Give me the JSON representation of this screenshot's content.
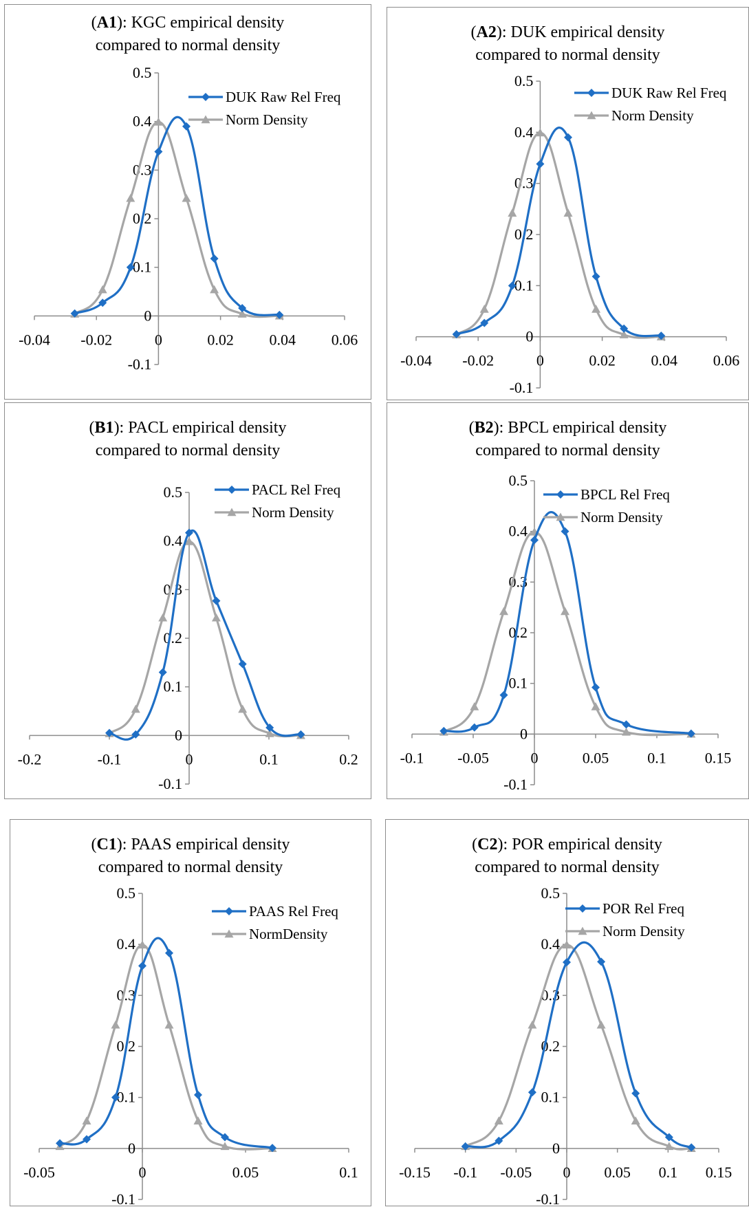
{
  "chart_data": [
    {
      "id": "A1",
      "type": "line",
      "title_label": "A1",
      "title_line1": "KGC empirical density",
      "title_line2": "compared to normal density",
      "xlim": [
        -0.04,
        0.06
      ],
      "ylim": [
        -0.1,
        0.5
      ],
      "xticks": [
        "-0.04",
        "-0.02",
        "0",
        "0.02",
        "0.04",
        "0.06"
      ],
      "xtick_values": [
        -0.04,
        -0.02,
        0,
        0.02,
        0.04,
        0.06
      ],
      "yticks": [
        "0.5",
        "0.4",
        "0.3",
        "0.2",
        "0.1",
        "0",
        "-0.1"
      ],
      "ytick_values": [
        0.5,
        0.4,
        0.3,
        0.2,
        0.1,
        0,
        -0.1
      ],
      "series": [
        {
          "name": "DUK Raw Rel Freq",
          "color": "#1f6fc5",
          "marker": "diamond",
          "x": [
            -0.027,
            -0.018,
            -0.009,
            0.0,
            0.009,
            0.018,
            0.027,
            0.039
          ],
          "y": [
            0.005,
            0.027,
            0.1,
            0.338,
            0.39,
            0.118,
            0.016,
            0.002
          ]
        },
        {
          "name": "Norm Density",
          "color": "#a6a6a6",
          "marker": "triangle",
          "x": [
            -0.027,
            -0.018,
            -0.009,
            0.0,
            0.009,
            0.018,
            0.027,
            0.039
          ],
          "y": [
            0.004,
            0.054,
            0.242,
            0.399,
            0.242,
            0.054,
            0.004,
            0.0
          ]
        }
      ]
    },
    {
      "id": "A2",
      "type": "line",
      "title_label": "A2",
      "title_line1": "DUK empirical density",
      "title_line2": "compared to normal density",
      "xlim": [
        -0.04,
        0.06
      ],
      "ylim": [
        -0.1,
        0.5
      ],
      "xticks": [
        "-0.04",
        "-0.02",
        "0",
        "0.02",
        "0.04",
        "0.06"
      ],
      "xtick_values": [
        -0.04,
        -0.02,
        0,
        0.02,
        0.04,
        0.06
      ],
      "yticks": [
        "0.5",
        "0.4",
        "0.3",
        "0.2",
        "0.1",
        "0",
        "-0.1"
      ],
      "ytick_values": [
        0.5,
        0.4,
        0.3,
        0.2,
        0.1,
        0,
        -0.1
      ],
      "series": [
        {
          "name": "DUK Raw Rel Freq",
          "color": "#1f6fc5",
          "marker": "diamond",
          "x": [
            -0.027,
            -0.018,
            -0.009,
            0.0,
            0.009,
            0.018,
            0.027,
            0.039
          ],
          "y": [
            0.005,
            0.027,
            0.1,
            0.338,
            0.39,
            0.118,
            0.016,
            0.002
          ]
        },
        {
          "name": "Norm Density",
          "color": "#a6a6a6",
          "marker": "triangle",
          "x": [
            -0.027,
            -0.018,
            -0.009,
            0.0,
            0.009,
            0.018,
            0.027,
            0.039
          ],
          "y": [
            0.004,
            0.054,
            0.242,
            0.399,
            0.242,
            0.054,
            0.004,
            0.0
          ]
        }
      ]
    },
    {
      "id": "B1",
      "type": "line",
      "title_label": "B1",
      "title_line1": "PACL empirical density",
      "title_line2": "compared to normal density",
      "xlim": [
        -0.2,
        0.2
      ],
      "ylim": [
        -0.1,
        0.5
      ],
      "xticks": [
        "-0.2",
        "-0.1",
        "0",
        "0.1",
        "0.2"
      ],
      "xtick_values": [
        -0.2,
        -0.1,
        0,
        0.1,
        0.2
      ],
      "yticks": [
        "0.5",
        "0.4",
        "0.3",
        "0.2",
        "0.1",
        "0",
        "-0.1"
      ],
      "ytick_values": [
        0.5,
        0.4,
        0.3,
        0.2,
        0.1,
        0,
        -0.1
      ],
      "series": [
        {
          "name": "PACL Rel Freq",
          "color": "#1f6fc5",
          "marker": "diamond",
          "x": [
            -0.1,
            -0.067,
            -0.033,
            0.0,
            0.034,
            0.067,
            0.101,
            0.14
          ],
          "y": [
            0.005,
            0.002,
            0.13,
            0.417,
            0.277,
            0.147,
            0.016,
            0.002
          ]
        },
        {
          "name": "Norm Density",
          "color": "#a6a6a6",
          "marker": "triangle",
          "x": [
            -0.1,
            -0.067,
            -0.033,
            0.0,
            0.034,
            0.067,
            0.101,
            0.14
          ],
          "y": [
            0.004,
            0.054,
            0.242,
            0.399,
            0.242,
            0.054,
            0.004,
            0.0
          ]
        }
      ]
    },
    {
      "id": "B2",
      "type": "line",
      "title_label": "B2",
      "title_line1": "BPCL empirical density",
      "title_line2": "compared to normal density",
      "xlim": [
        -0.1,
        0.15
      ],
      "ylim": [
        -0.1,
        0.5
      ],
      "xticks": [
        "-0.1",
        "-0.05",
        "0",
        "0.05",
        "0.1",
        "0.15"
      ],
      "xtick_values": [
        -0.1,
        -0.05,
        0,
        0.05,
        0.1,
        0.15
      ],
      "yticks": [
        "0.5",
        "0.4",
        "0.3",
        "0.2",
        "0.1",
        "0",
        "-0.1"
      ],
      "ytick_values": [
        0.5,
        0.4,
        0.3,
        0.2,
        0.1,
        0,
        -0.1
      ],
      "series": [
        {
          "name": "BPCL Rel Freq",
          "color": "#1f6fc5",
          "marker": "diamond",
          "x": [
            -0.074,
            -0.049,
            -0.025,
            0.0,
            0.025,
            0.05,
            0.075,
            0.128
          ],
          "y": [
            0.006,
            0.013,
            0.077,
            0.383,
            0.4,
            0.092,
            0.019,
            0.001
          ]
        },
        {
          "name": "Norm Density",
          "color": "#a6a6a6",
          "marker": "triangle",
          "x": [
            -0.074,
            -0.049,
            -0.025,
            0.0,
            0.025,
            0.05,
            0.075,
            0.128
          ],
          "y": [
            0.004,
            0.054,
            0.242,
            0.399,
            0.242,
            0.054,
            0.004,
            0.0
          ]
        }
      ]
    },
    {
      "id": "C1",
      "type": "line",
      "title_label": "C1",
      "title_line1": "PAAS empirical density",
      "title_line2": "compared to normal density",
      "xlim": [
        -0.05,
        0.1
      ],
      "ylim": [
        -0.1,
        0.5
      ],
      "xticks": [
        "-0.05",
        "0",
        "0.05",
        "0.1"
      ],
      "xtick_values": [
        -0.05,
        0,
        0.05,
        0.1
      ],
      "yticks": [
        "0.5",
        "0.4",
        "0.3",
        "0.2",
        "0.1",
        "0",
        "-0.1"
      ],
      "ytick_values": [
        0.5,
        0.4,
        0.3,
        0.2,
        0.1,
        0,
        -0.1
      ],
      "series": [
        {
          "name": "PAAS Rel Freq",
          "color": "#1f6fc5",
          "marker": "diamond",
          "x": [
            -0.04,
            -0.027,
            -0.013,
            0.0,
            0.013,
            0.027,
            0.04,
            0.063
          ],
          "y": [
            0.01,
            0.018,
            0.1,
            0.358,
            0.383,
            0.105,
            0.022,
            0.001
          ]
        },
        {
          "name": "NormDensity",
          "color": "#a6a6a6",
          "marker": "triangle",
          "x": [
            -0.04,
            -0.027,
            -0.013,
            0.0,
            0.013,
            0.027,
            0.04,
            0.063
          ],
          "y": [
            0.004,
            0.054,
            0.242,
            0.399,
            0.242,
            0.054,
            0.004,
            0.0
          ]
        }
      ]
    },
    {
      "id": "C2",
      "type": "line",
      "title_label": "C2",
      "title_line1": "POR empirical density",
      "title_line2": "compared to normal density",
      "xlim": [
        -0.15,
        0.15
      ],
      "ylim": [
        -0.1,
        0.5
      ],
      "xticks": [
        "-0.15",
        "-0.1",
        "-0.05",
        "0",
        "0.05",
        "0.1",
        "0.15"
      ],
      "xtick_values": [
        -0.15,
        -0.1,
        -0.05,
        0,
        0.05,
        0.1,
        0.15
      ],
      "yticks": [
        "0.5",
        "0.4",
        "0.3",
        "0.2",
        "0.1",
        "0",
        "-0.1"
      ],
      "ytick_values": [
        0.5,
        0.4,
        0.3,
        0.2,
        0.1,
        0,
        -0.1
      ],
      "series": [
        {
          "name": "POR Rel Freq",
          "color": "#1f6fc5",
          "marker": "diamond",
          "x": [
            -0.1,
            -0.067,
            -0.034,
            0.0,
            0.034,
            0.068,
            0.101,
            0.123
          ],
          "y": [
            0.004,
            0.015,
            0.11,
            0.365,
            0.366,
            0.108,
            0.022,
            0.002
          ]
        },
        {
          "name": "Norm Density",
          "color": "#a6a6a6",
          "marker": "triangle",
          "x": [
            -0.1,
            -0.067,
            -0.034,
            0.0,
            0.034,
            0.068,
            0.101,
            0.123
          ],
          "y": [
            0.004,
            0.054,
            0.242,
            0.399,
            0.242,
            0.054,
            0.004,
            0.0
          ]
        }
      ]
    }
  ]
}
